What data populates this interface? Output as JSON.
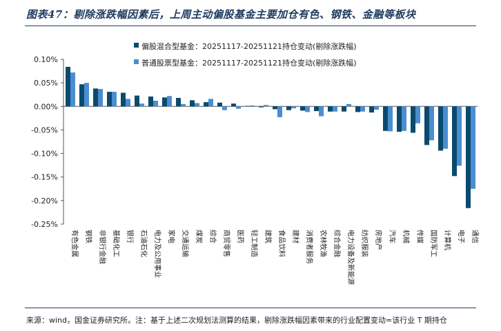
{
  "title": "图表47：剔除涨跌幅因素后，上周主动偏股基金主要加仓有色、钢铁、金融等板块",
  "source": "来源：wind，国金证券研究所。注：基于上述二次规划法测算的结果，剔除涨跌幅因素带来的行业配置变动=该行业 T 期持仓",
  "colors": {
    "series1": "#0b4a6f",
    "series2": "#4a8ed0"
  },
  "chart_data": {
    "type": "bar",
    "title": "图表47：剔除涨跌幅因素后，上周主动偏股基金主要加仓有色、钢铁、金融等板块",
    "xlabel": "",
    "ylabel": "",
    "ylim": [
      -0.25,
      0.1
    ],
    "yticks": [
      "0.10%",
      "0.05%",
      "0.00%",
      "-0.05%",
      "-0.10%",
      "-0.15%",
      "-0.20%",
      "-0.25%"
    ],
    "grid": false,
    "legend": "top-center",
    "categories": [
      "有色金属",
      "钢铁",
      "非银行金融",
      "基础化工",
      "银行",
      "石油石化",
      "电力及公用事业",
      "家电",
      "交通运输",
      "煤炭",
      "综合",
      "商贸零售",
      "医药",
      "轻工制造",
      "建筑",
      "食品饮料",
      "建材",
      "消费者服务",
      "农林牧渔",
      "综合金融",
      "电力设备及新能源",
      "纺织服装",
      "房地产",
      "汽车",
      "机械",
      "传媒",
      "国防军工",
      "计算机",
      "电子",
      "通信"
    ],
    "series": [
      {
        "name": "偏股混合型基金：20251117-20251121持仓变动(剔除涨跌幅)",
        "values": [
          0.084,
          0.047,
          0.038,
          0.031,
          0.029,
          0.023,
          0.021,
          0.019,
          0.018,
          0.013,
          0.009,
          0.008,
          0.006,
          0.001,
          -0.002,
          -0.006,
          -0.008,
          -0.009,
          -0.01,
          -0.011,
          -0.011,
          -0.012,
          -0.013,
          -0.052,
          -0.054,
          -0.056,
          -0.082,
          -0.094,
          -0.148,
          -0.216
        ]
      },
      {
        "name": "普通股票型基金：20251117-20251121持仓变动(剔除涨跌幅)",
        "values": [
          0.072,
          0.05,
          0.037,
          0.031,
          0.016,
          0.006,
          0.012,
          0.022,
          0.005,
          0.007,
          0.016,
          -0.008,
          -0.005,
          0.002,
          0.003,
          -0.023,
          -0.004,
          -0.012,
          -0.021,
          -0.011,
          0.005,
          -0.011,
          -0.007,
          -0.053,
          -0.052,
          -0.036,
          -0.072,
          -0.09,
          -0.126,
          -0.175
        ]
      }
    ]
  }
}
